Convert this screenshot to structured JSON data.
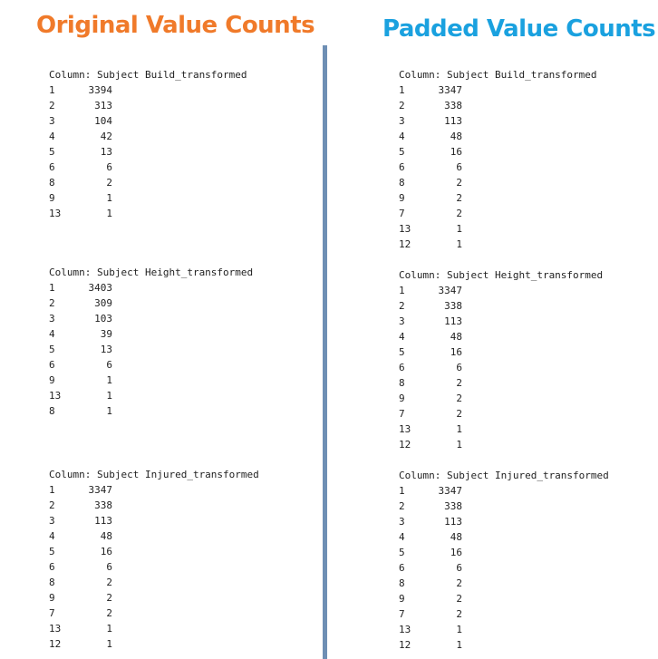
{
  "titles": {
    "original": "Original Value Counts",
    "padded": "Padded Value Counts"
  },
  "original": [
    {
      "header": "Column: Subject Build_transformed",
      "rows": [
        [
          "1",
          "3394"
        ],
        [
          "2",
          "313"
        ],
        [
          "3",
          "104"
        ],
        [
          "4",
          "42"
        ],
        [
          "5",
          "13"
        ],
        [
          "6",
          "6"
        ],
        [
          "8",
          "2"
        ],
        [
          "9",
          "1"
        ],
        [
          "13",
          "1"
        ]
      ]
    },
    {
      "header": "Column: Subject Height_transformed",
      "rows": [
        [
          "1",
          "3403"
        ],
        [
          "2",
          "309"
        ],
        [
          "3",
          "103"
        ],
        [
          "4",
          "39"
        ],
        [
          "5",
          "13"
        ],
        [
          "6",
          "6"
        ],
        [
          "9",
          "1"
        ],
        [
          "13",
          "1"
        ],
        [
          "8",
          "1"
        ]
      ]
    },
    {
      "header": "Column: Subject Injured_transformed",
      "rows": [
        [
          "1",
          "3347"
        ],
        [
          "2",
          "338"
        ],
        [
          "3",
          "113"
        ],
        [
          "4",
          "48"
        ],
        [
          "5",
          "16"
        ],
        [
          "6",
          "6"
        ],
        [
          "8",
          "2"
        ],
        [
          "9",
          "2"
        ],
        [
          "7",
          "2"
        ],
        [
          "13",
          "1"
        ],
        [
          "12",
          "1"
        ]
      ]
    }
  ],
  "padded": [
    {
      "header": "Column: Subject Build_transformed",
      "rows": [
        [
          "1",
          "3347"
        ],
        [
          "2",
          "338"
        ],
        [
          "3",
          "113"
        ],
        [
          "4",
          "48"
        ],
        [
          "5",
          "16"
        ],
        [
          "6",
          "6"
        ],
        [
          "8",
          "2"
        ],
        [
          "9",
          "2"
        ],
        [
          "7",
          "2"
        ],
        [
          "13",
          "1"
        ],
        [
          "12",
          "1"
        ]
      ]
    },
    {
      "header": "Column: Subject Height_transformed",
      "rows": [
        [
          "1",
          "3347"
        ],
        [
          "2",
          "338"
        ],
        [
          "3",
          "113"
        ],
        [
          "4",
          "48"
        ],
        [
          "5",
          "16"
        ],
        [
          "6",
          "6"
        ],
        [
          "8",
          "2"
        ],
        [
          "9",
          "2"
        ],
        [
          "7",
          "2"
        ],
        [
          "13",
          "1"
        ],
        [
          "12",
          "1"
        ]
      ]
    },
    {
      "header": "Column: Subject Injured_transformed",
      "rows": [
        [
          "1",
          "3347"
        ],
        [
          "2",
          "338"
        ],
        [
          "3",
          "113"
        ],
        [
          "4",
          "48"
        ],
        [
          "5",
          "16"
        ],
        [
          "6",
          "6"
        ],
        [
          "8",
          "2"
        ],
        [
          "9",
          "2"
        ],
        [
          "7",
          "2"
        ],
        [
          "13",
          "1"
        ],
        [
          "12",
          "1"
        ]
      ]
    }
  ]
}
